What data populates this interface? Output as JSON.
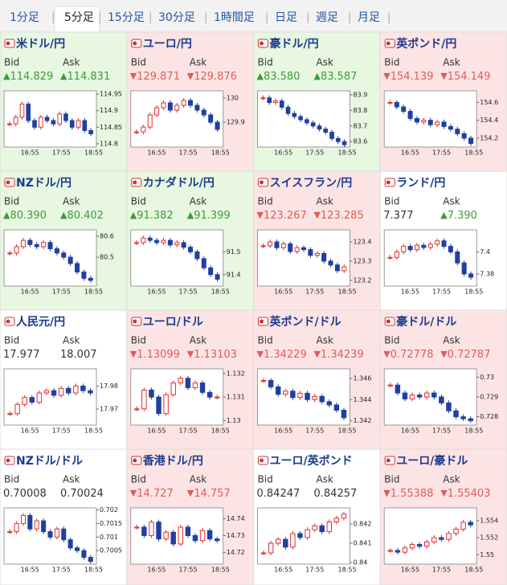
{
  "tabs": [
    "1分足",
    "5分足",
    "15分足",
    "30分足",
    "1時間足",
    "日足",
    "週足",
    "月足"
  ],
  "active_tab": 1,
  "separator": "|",
  "labels": {
    "bid": "Bid",
    "ask": "Ask"
  },
  "arrows": {
    "up": "▲",
    "down": "▼"
  },
  "colors": {
    "up": "#3c9a3c",
    "down": "#e25a5a",
    "flat": "#333333",
    "bg_up": "#e7f7e0",
    "bg_down": "#fde4e4",
    "bg_flat": "#ffffff",
    "candle_up": "#e03030",
    "candle_down": "#2040a0"
  },
  "panels": [
    {
      "title": "米ドル/円",
      "bid": "114.829",
      "bid_dir": "up",
      "ask": "114.831",
      "ask_dir": "up",
      "trend": "up",
      "chart": {
        "type": "candlestick",
        "xticks": [
          "16:55",
          "17:55",
          "18:55"
        ],
        "ylim": [
          114.79,
          114.96
        ],
        "yticks": [
          114.95,
          114.9,
          114.85,
          114.8
        ],
        "values": [
          114.86,
          114.88,
          114.92,
          114.87,
          114.85,
          114.88,
          114.87,
          114.86,
          114.89,
          114.87,
          114.85,
          114.87,
          114.84,
          114.83
        ]
      }
    },
    {
      "title": "ユーロ/円",
      "bid": "129.871",
      "bid_dir": "down",
      "ask": "129.876",
      "ask_dir": "down",
      "trend": "down",
      "chart": {
        "type": "candlestick",
        "xticks": [
          "16:55",
          "17:55",
          "18:55"
        ],
        "ylim": [
          129.797,
          130.03
        ],
        "yticks": [
          130,
          129.9
        ],
        "values": [
          129.86,
          129.88,
          129.93,
          129.96,
          129.98,
          129.95,
          129.97,
          129.99,
          129.97,
          129.95,
          129.93,
          129.9,
          129.87
        ]
      }
    },
    {
      "title": "豪ドル/円",
      "bid": "83.580",
      "bid_dir": "up",
      "ask": "83.587",
      "ask_dir": "up",
      "trend": "up",
      "chart": {
        "type": "candlestick",
        "xticks": [
          "16:55",
          "17:55",
          "18:55"
        ],
        "ylim": [
          83.565,
          83.925
        ],
        "yticks": [
          83.9,
          83.8,
          83.7,
          83.6
        ],
        "values": [
          83.88,
          83.85,
          83.86,
          83.82,
          83.78,
          83.76,
          83.74,
          83.72,
          83.7,
          83.68,
          83.66,
          83.62,
          83.6,
          83.58
        ]
      }
    },
    {
      "title": "英ポンド/円",
      "bid": "154.139",
      "bid_dir": "down",
      "ask": "154.149",
      "ask_dir": "down",
      "trend": "down",
      "chart": {
        "type": "candlestick",
        "xticks": [
          "16:55",
          "17:55",
          "18:55"
        ],
        "ylim": [
          154.1,
          154.73
        ],
        "yticks": [
          154.6,
          154.4,
          154.2
        ],
        "values": [
          154.6,
          154.55,
          154.5,
          154.42,
          154.38,
          154.4,
          154.35,
          154.38,
          154.33,
          154.3,
          154.25,
          154.2,
          154.14
        ]
      }
    },
    {
      "title": "NZドル/円",
      "bid": "80.390",
      "bid_dir": "up",
      "ask": "80.402",
      "ask_dir": "up",
      "trend": "up",
      "chart": {
        "type": "candlestick",
        "xticks": [
          "16:55",
          "17:55",
          "18:55"
        ],
        "ylim": [
          80.363,
          80.63
        ],
        "yticks": [
          80.6,
          80.5
        ],
        "values": [
          80.52,
          80.55,
          80.58,
          80.56,
          80.55,
          80.57,
          80.54,
          80.52,
          80.5,
          80.47,
          80.43,
          80.4,
          80.39
        ]
      }
    },
    {
      "title": "カナダドル/円",
      "bid": "91.382",
      "bid_dir": "up",
      "ask": "91.399",
      "ask_dir": "up",
      "trend": "up",
      "chart": {
        "type": "candlestick",
        "xticks": [
          "16:55",
          "17:55",
          "18:55"
        ],
        "ylim": [
          91.35,
          91.596
        ],
        "yticks": [
          91.5,
          91.4
        ],
        "values": [
          91.54,
          91.56,
          91.55,
          91.54,
          91.55,
          91.53,
          91.54,
          91.52,
          91.5,
          91.47,
          91.43,
          91.4,
          91.38
        ]
      }
    },
    {
      "title": "スイスフラン/円",
      "bid": "123.267",
      "bid_dir": "down",
      "ask": "123.285",
      "ask_dir": "down",
      "trend": "down",
      "chart": {
        "type": "candlestick",
        "xticks": [
          "16:55",
          "17:55",
          "18:55"
        ],
        "ylim": [
          123.17,
          123.463
        ],
        "yticks": [
          123.4,
          123.3,
          123.2
        ],
        "values": [
          123.38,
          123.4,
          123.37,
          123.39,
          123.35,
          123.37,
          123.36,
          123.33,
          123.34,
          123.3,
          123.28,
          123.25,
          123.27
        ]
      }
    },
    {
      "title": "ランド/円",
      "bid": "7.377",
      "bid_dir": null,
      "ask": "7.390",
      "ask_dir": "up",
      "trend": null,
      "chart": {
        "type": "candlestick",
        "xticks": [
          "16:55",
          "17:55",
          "18:55"
        ],
        "ylim": [
          7.369,
          7.42
        ],
        "yticks": [
          7.4,
          7.38
        ],
        "values": [
          7.395,
          7.4,
          7.405,
          7.402,
          7.406,
          7.404,
          7.407,
          7.41,
          7.405,
          7.4,
          7.39,
          7.38,
          7.377
        ]
      }
    },
    {
      "title": "人民元/円",
      "bid": "17.977",
      "bid_dir": null,
      "ask": "18.007",
      "ask_dir": null,
      "trend": null,
      "chart": {
        "type": "candlestick",
        "xticks": [
          "16:55",
          "17:55",
          "18:55"
        ],
        "ylim": [
          17.963,
          17.9875
        ],
        "yticks": [
          17.98,
          17.97
        ],
        "values": [
          17.968,
          17.972,
          17.975,
          17.973,
          17.977,
          17.978,
          17.976,
          17.979,
          17.977,
          17.98,
          17.978,
          17.977
        ]
      }
    },
    {
      "title": "ユーロ/ドル",
      "bid": "1.13099",
      "bid_dir": "down",
      "ask": "1.13103",
      "ask_dir": "down",
      "trend": "down",
      "chart": {
        "type": "candlestick",
        "xticks": [
          "16:55",
          "17:55",
          "18:55"
        ],
        "ylim": [
          1.12981,
          1.1322
        ],
        "yticks": [
          1.132,
          1.131,
          1.13
        ],
        "values": [
          1.1305,
          1.1313,
          1.131,
          1.1303,
          1.1311,
          1.1316,
          1.1318,
          1.1314,
          1.1316,
          1.1312,
          1.131,
          1.131
        ]
      }
    },
    {
      "title": "英ポンド/ドル",
      "bid": "1.34229",
      "bid_dir": "down",
      "ask": "1.34239",
      "ask_dir": "down",
      "trend": "down",
      "chart": {
        "type": "candlestick",
        "xticks": [
          "16:55",
          "17:55",
          "18:55"
        ],
        "ylim": [
          1.3416,
          1.3469
        ],
        "yticks": [
          1.346,
          1.344,
          1.342
        ],
        "values": [
          1.3458,
          1.3452,
          1.3445,
          1.3448,
          1.3442,
          1.3446,
          1.344,
          1.3443,
          1.3438,
          1.3435,
          1.343,
          1.3423
        ]
      }
    },
    {
      "title": "豪ドル/ドル",
      "bid": "0.72778",
      "bid_dir": "down",
      "ask": "0.72787",
      "ask_dir": "down",
      "trend": "down",
      "chart": {
        "type": "candlestick",
        "xticks": [
          "16:55",
          "17:55",
          "18:55"
        ],
        "ylim": [
          0.72758,
          0.73042
        ],
        "yticks": [
          0.73,
          0.729,
          0.728
        ],
        "values": [
          0.7296,
          0.7292,
          0.7289,
          0.7291,
          0.729,
          0.7292,
          0.729,
          0.7287,
          0.7283,
          0.728,
          0.7279,
          0.7278
        ]
      }
    },
    {
      "title": "NZドル/ドル",
      "bid": "0.70008",
      "bid_dir": null,
      "ask": "0.70024",
      "ask_dir": null,
      "trend": null,
      "chart": {
        "type": "candlestick",
        "xticks": [
          "16:55",
          "17:55",
          "18:55"
        ],
        "ylim": [
          0.7,
          0.70208
        ],
        "yticks": [
          0.702,
          0.7015,
          0.701,
          0.7005
        ],
        "values": [
          0.7012,
          0.7015,
          0.7018,
          0.7013,
          0.7016,
          0.7012,
          0.701,
          0.7013,
          0.7009,
          0.7006,
          0.7005,
          0.70025,
          0.7001
        ]
      }
    },
    {
      "title": "香港ドル/円",
      "bid": "14.727",
      "bid_dir": "down",
      "ask": "14.757",
      "ask_dir": "down",
      "trend": "down",
      "chart": {
        "type": "candlestick",
        "xticks": [
          "16:55",
          "17:55",
          "18:55"
        ],
        "ylim": [
          14.713,
          14.7465
        ],
        "yticks": [
          14.74,
          14.73,
          14.72
        ],
        "values": [
          14.735,
          14.73,
          14.738,
          14.728,
          14.732,
          14.725,
          14.735,
          14.73,
          14.727,
          14.733,
          14.728,
          14.727
        ]
      }
    },
    {
      "title": "ユーロ/英ポンド",
      "bid": "0.84247",
      "bid_dir": null,
      "ask": "0.84257",
      "ask_dir": null,
      "trend": null,
      "chart": {
        "type": "candlestick",
        "xticks": [
          "16:55",
          "17:55",
          "18:55"
        ],
        "ylim": [
          0.83992,
          0.84283
        ],
        "yticks": [
          0.842,
          0.841,
          0.84
        ],
        "values": [
          0.8405,
          0.841,
          0.8412,
          0.8408,
          0.8415,
          0.8413,
          0.8417,
          0.8419,
          0.8416,
          0.8421,
          0.8423,
          0.8425
        ]
      }
    },
    {
      "title": "ユーロ/豪ドル",
      "bid": "1.55388",
      "bid_dir": "down",
      "ask": "1.55403",
      "ask_dir": "down",
      "trend": "down",
      "chart": {
        "type": "candlestick",
        "xticks": [
          "16:55",
          "17:55",
          "18:55"
        ],
        "ylim": [
          1.5489,
          1.5555
        ],
        "yticks": [
          1.554,
          1.552,
          1.55
        ],
        "values": [
          1.5505,
          1.5503,
          1.5508,
          1.5512,
          1.551,
          1.5515,
          1.552,
          1.5518,
          1.5525,
          1.553,
          1.5538,
          1.5535
        ]
      }
    }
  ]
}
